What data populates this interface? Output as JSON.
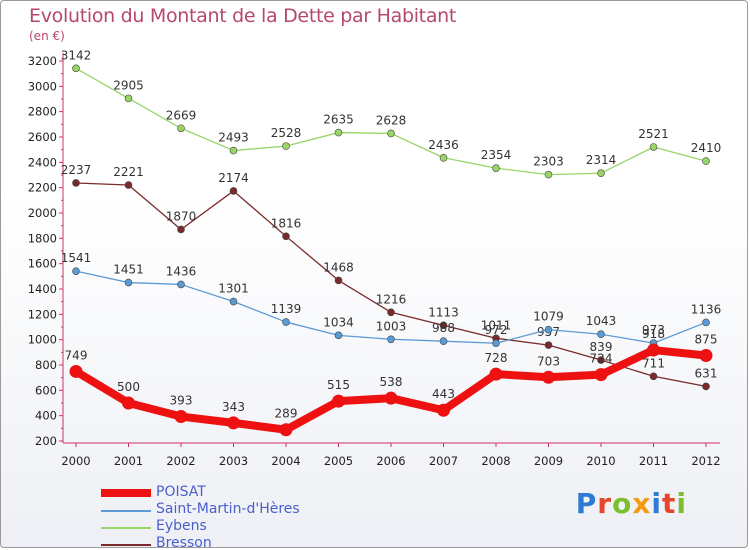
{
  "header": {
    "title": "Evolution du Montant de la Dette par Habitant",
    "unit": "(en €)"
  },
  "brand": {
    "logo": "Proxiti",
    "letter_colors": [
      "#2e7bd6",
      "#e8462a",
      "#7bbf2e",
      "#f39c12",
      "#2e7bd6",
      "#e8462a",
      "#7bbf2e"
    ]
  },
  "chart_data": {
    "type": "line",
    "title": "Evolution du Montant de la Dette par Habitant",
    "ylabel": "(en €)",
    "xlabel": "",
    "ylim": [
      200,
      3200
    ],
    "yticks": [
      200,
      400,
      600,
      800,
      1000,
      1200,
      1400,
      1600,
      1800,
      2000,
      2200,
      2400,
      2600,
      2800,
      3000,
      3200
    ],
    "grid": false,
    "legend": "bottom-left",
    "x": [
      "2000",
      "2001",
      "2002",
      "2003",
      "2004",
      "2005",
      "2006",
      "2007",
      "2008",
      "2009",
      "2010",
      "2011",
      "2012"
    ],
    "series": [
      {
        "name": "POISAT",
        "color": "#ee1111",
        "values": [
          749,
          500,
          393,
          343,
          289,
          515,
          538,
          443,
          728,
          703,
          724,
          918,
          875
        ]
      },
      {
        "name": "Saint-Martin-d'Hères",
        "color": "#5b9bd5",
        "values": [
          1541,
          1451,
          1436,
          1301,
          1139,
          1034,
          1003,
          988,
          972,
          1079,
          1043,
          973,
          1136
        ]
      },
      {
        "name": "Eybens",
        "color": "#99d466",
        "values": [
          3142,
          2905,
          2669,
          2493,
          2528,
          2635,
          2628,
          2436,
          2354,
          2303,
          2314,
          2521,
          2410
        ]
      },
      {
        "name": "Bresson",
        "color": "#7a2a2a",
        "values": [
          2237,
          2221,
          1870,
          2174,
          1816,
          1468,
          1216,
          1113,
          1011,
          957,
          839,
          711,
          631
        ]
      }
    ]
  }
}
